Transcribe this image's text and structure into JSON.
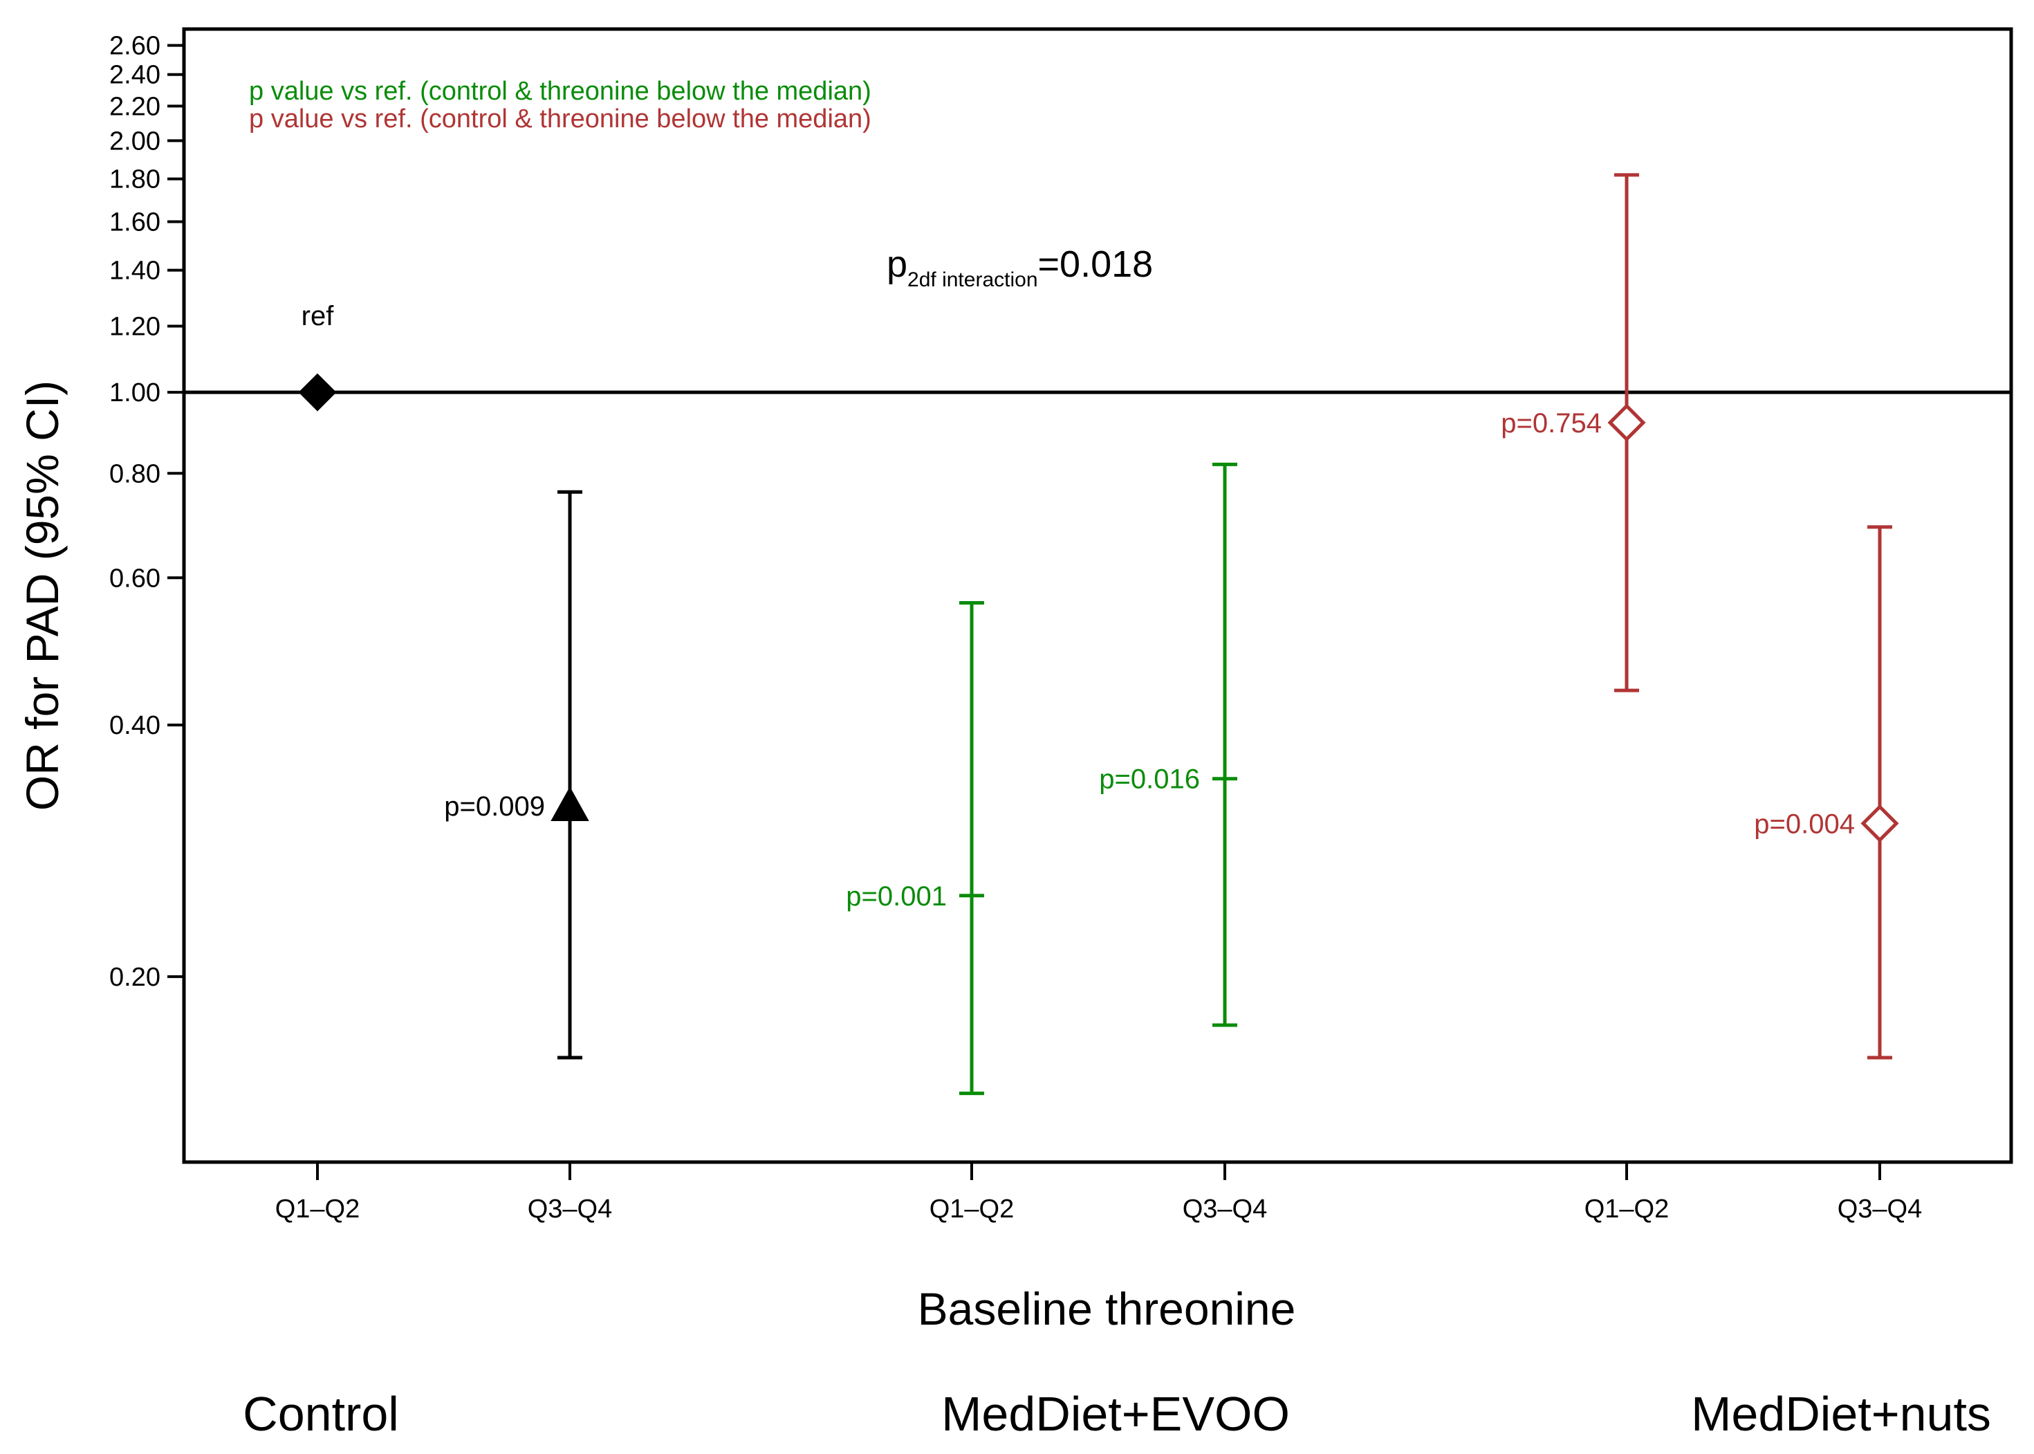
{
  "chart_data": {
    "type": "scatter",
    "subtype": "odds-ratio error bars",
    "ylabel": "OR for PAD (95% CI)",
    "xlabel": "Baseline threonine",
    "yscale": "log",
    "ylim": [
      0.12,
      2.72
    ],
    "yticks": [
      0.2,
      0.4,
      0.6,
      0.8,
      1.0,
      1.2,
      1.4,
      1.6,
      1.8,
      2.0,
      2.2,
      2.4,
      2.6
    ],
    "ytick_labels": [
      "0.20",
      "0.40",
      "0.60",
      "0.80",
      "1.00",
      "1.20",
      "1.40",
      "1.60",
      "1.80",
      "2.00",
      "2.20",
      "2.40",
      "2.60"
    ],
    "reference_line": 1.0,
    "groups": [
      "Control",
      "MedDiet+EVOO",
      "MedDiet+nuts"
    ],
    "colors": {
      "control": "#000000",
      "evoo": "#0a8c0a",
      "nuts": "#b03535"
    },
    "legend": [
      {
        "label": "p value vs ref. (control & threonine below the median)",
        "color": "#0a8c0a"
      },
      {
        "label": "p value vs ref. (control & threonine below the median)",
        "color": "#b03535"
      }
    ],
    "annotation": {
      "main": "p",
      "sub": "2df interaction",
      "value": "=0.018"
    },
    "ref_label": "ref",
    "points": [
      {
        "group": "Control",
        "category": "Q1–Q2",
        "or": 1.0,
        "low": null,
        "high": null,
        "marker": "diamond-filled",
        "color": "#000000",
        "p_label": ""
      },
      {
        "group": "Control",
        "category": "Q3–Q4",
        "or": 0.32,
        "low": 0.16,
        "high": 0.76,
        "marker": "triangle-filled",
        "color": "#000000",
        "p_label": "p=0.009"
      },
      {
        "group": "MedDiet+EVOO",
        "category": "Q1–Q2",
        "or": 0.25,
        "low": 0.145,
        "high": 0.56,
        "marker": "dash",
        "color": "#0a8c0a",
        "p_label": "p=0.001"
      },
      {
        "group": "MedDiet+EVOO",
        "category": "Q3–Q4",
        "or": 0.345,
        "low": 0.175,
        "high": 0.82,
        "marker": "dash",
        "color": "#0a8c0a",
        "p_label": "p=0.016"
      },
      {
        "group": "MedDiet+nuts",
        "category": "Q1–Q2",
        "or": 0.92,
        "low": 0.44,
        "high": 1.82,
        "marker": "diamond-open",
        "color": "#b03535",
        "p_label": "p=0.754"
      },
      {
        "group": "MedDiet+nuts",
        "category": "Q3–Q4",
        "or": 0.305,
        "low": 0.16,
        "high": 0.69,
        "marker": "diamond-open",
        "color": "#b03535",
        "p_label": "p=0.004"
      }
    ]
  }
}
